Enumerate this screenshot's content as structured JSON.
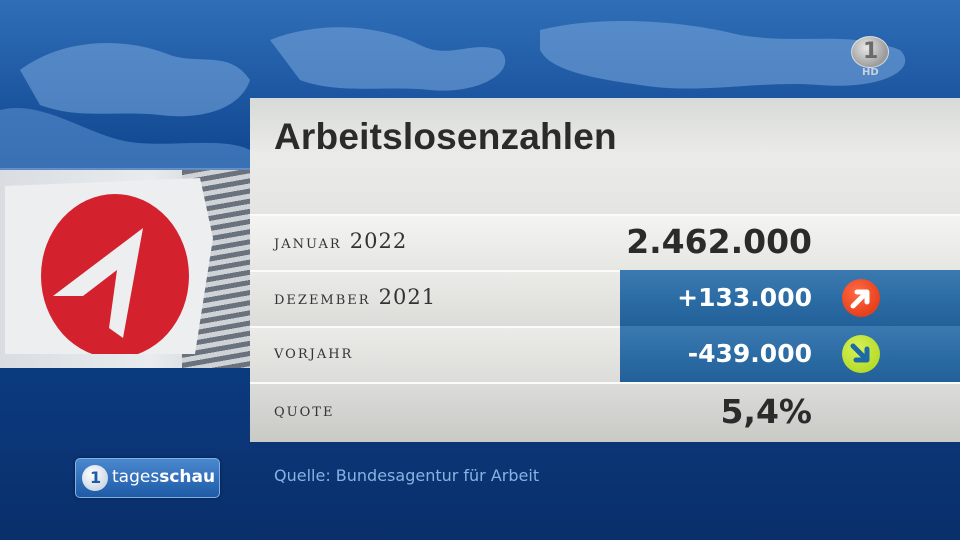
{
  "channel": {
    "logo_label": "1",
    "hd_label": "HD"
  },
  "title": "Arbeitslosenzahlen",
  "rows": [
    {
      "label": "Januar",
      "label_num": "2022",
      "value": "2.462.000",
      "highlight": false
    },
    {
      "label": "Dezember",
      "label_num": "2021",
      "value": "+133.000",
      "highlight": true,
      "trend": "up",
      "trend_color": "#e8401c"
    },
    {
      "label": "Vorjahr",
      "label_num": "",
      "value": "-439.000",
      "highlight": true,
      "trend": "down",
      "trend_color": "#b7dc2a"
    },
    {
      "label": "Quote",
      "label_num": "",
      "value": "5,4%",
      "highlight": false
    }
  ],
  "brand": {
    "logo_prefix": "tages",
    "logo_suffix": "schau",
    "icon": "ard-one-icon"
  },
  "source": "Quelle: Bundesagentur für Arbeit",
  "colors": {
    "highlight_bg": "#2a6aa3",
    "background": "#0f4690"
  }
}
